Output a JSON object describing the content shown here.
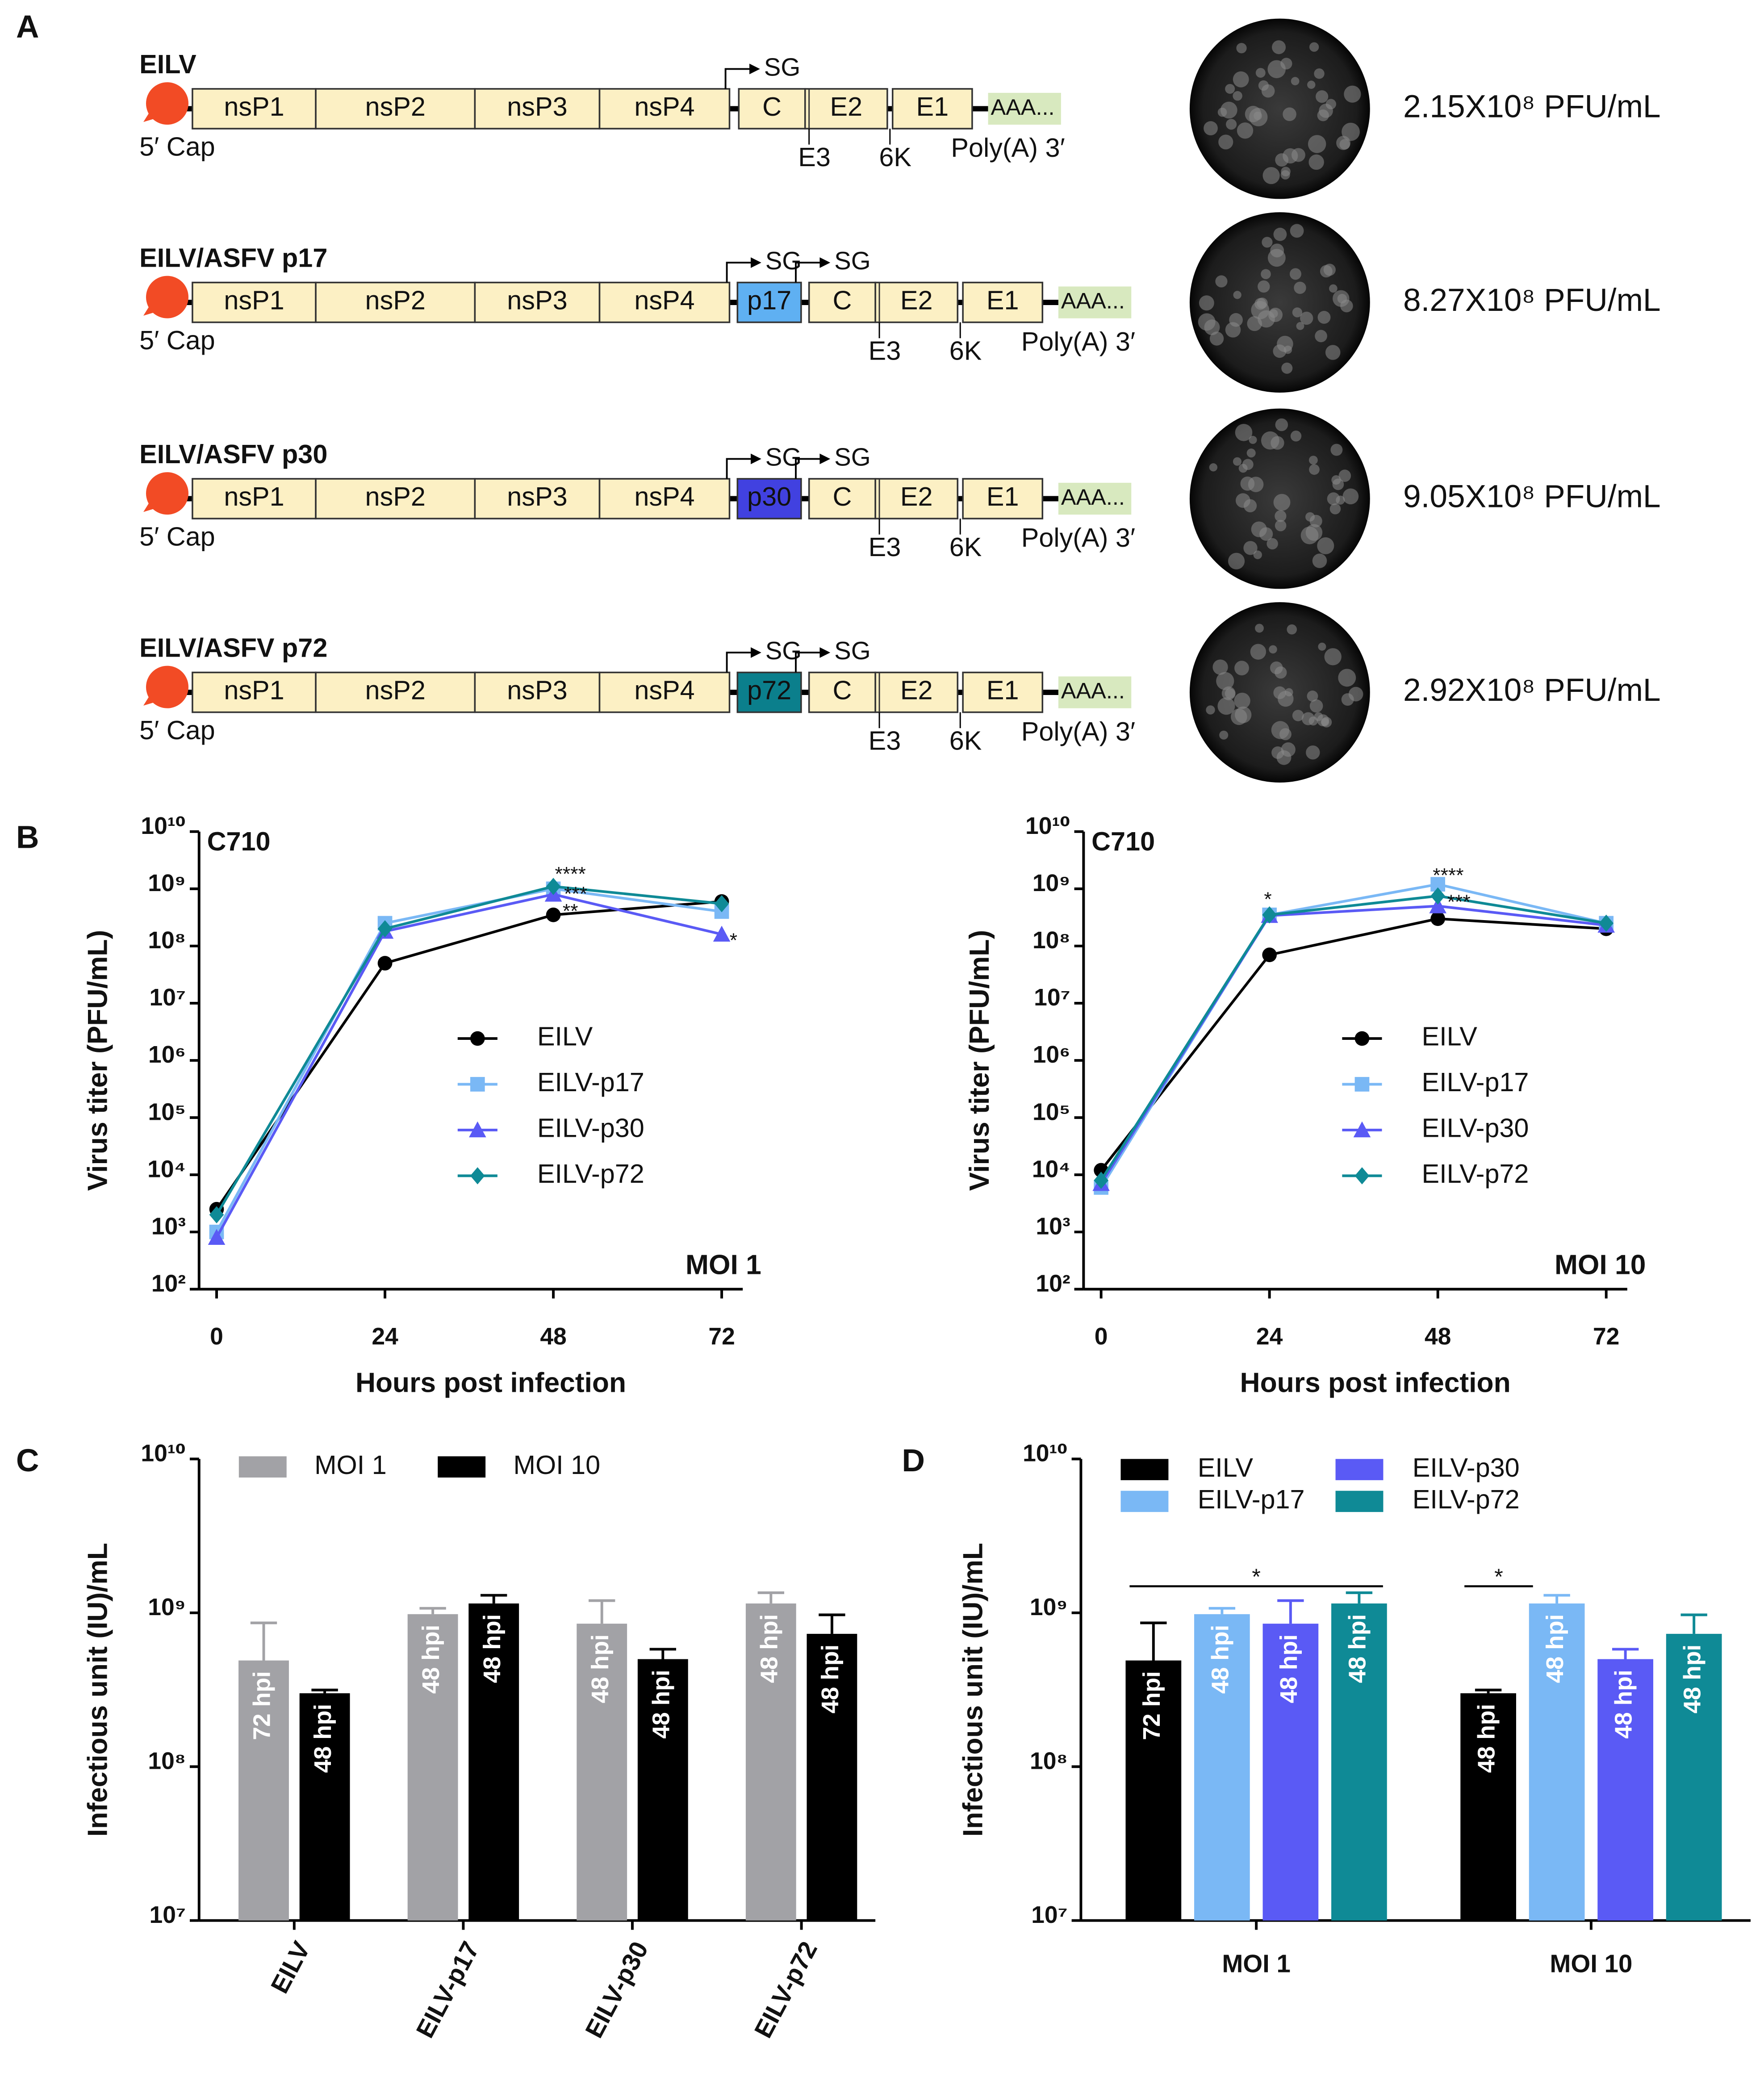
{
  "panel_labels": [
    "A",
    "B",
    "C",
    "D"
  ],
  "constructs": [
    {
      "name": "EILV",
      "cap": "5′ Cap",
      "genes": [
        "nsP1",
        "nsP2",
        "nsP3",
        "nsP4"
      ],
      "insert": null,
      "structural": [
        "C",
        "E2",
        "E1"
      ],
      "sg": [
        "SG"
      ],
      "junctions": [
        "E3",
        "6K"
      ],
      "tail": "AAA...",
      "polyA": "Poly(A) 3′",
      "titer": "2.15X10⁸ PFU/mL"
    },
    {
      "name": "EILV/ASFV p17",
      "cap": "5′ Cap",
      "genes": [
        "nsP1",
        "nsP2",
        "nsP3",
        "nsP4"
      ],
      "insert": {
        "label": "p17",
        "color": "#5fb0f2"
      },
      "structural": [
        "C",
        "E2",
        "E1"
      ],
      "sg": [
        "SG",
        "SG"
      ],
      "junctions": [
        "E3",
        "6K"
      ],
      "tail": "AAA...",
      "polyA": "Poly(A) 3′",
      "titer": "8.27X10⁸ PFU/mL"
    },
    {
      "name": "EILV/ASFV p30",
      "cap": "5′ Cap",
      "genes": [
        "nsP1",
        "nsP2",
        "nsP3",
        "nsP4"
      ],
      "insert": {
        "label": "p30",
        "color": "#4141e0"
      },
      "structural": [
        "C",
        "E2",
        "E1"
      ],
      "sg": [
        "SG",
        "SG"
      ],
      "junctions": [
        "E3",
        "6K"
      ],
      "tail": "AAA...",
      "polyA": "Poly(A) 3′",
      "titer": "9.05X10⁸ PFU/mL"
    },
    {
      "name": "EILV/ASFV p72",
      "cap": "5′ Cap",
      "genes": [
        "nsP1",
        "nsP2",
        "nsP3",
        "nsP4"
      ],
      "insert": {
        "label": "p72",
        "color": "#0b7f8c"
      },
      "structural": [
        "C",
        "E2",
        "E1"
      ],
      "sg": [
        "SG",
        "SG"
      ],
      "junctions": [
        "E3",
        "6K"
      ],
      "tail": "AAA...",
      "polyA": "Poly(A) 3′",
      "titer": "2.92X10⁸ PFU/mL"
    }
  ],
  "chart_data": [
    {
      "type": "line",
      "title": "C710",
      "corner_label": "MOI 1",
      "xlabel": "Hours post infection",
      "ylabel": "Virus titer (PFU/mL)",
      "x": [
        0,
        24,
        48,
        72
      ],
      "xlim": [
        -2.5,
        75
      ],
      "xticks": [
        0,
        24,
        48,
        72
      ],
      "ylim": [
        100,
        10000000000
      ],
      "yscale": "log",
      "yticks": [
        {
          "value": 100,
          "label": "10²"
        },
        {
          "value": 1000,
          "label": "10³"
        },
        {
          "value": 10000,
          "label": "10⁴"
        },
        {
          "value": 100000,
          "label": "10⁵"
        },
        {
          "value": 1000000,
          "label": "10⁶"
        },
        {
          "value": 10000000,
          "label": "10⁷"
        },
        {
          "value": 100000000,
          "label": "10⁸"
        },
        {
          "value": 1000000000,
          "label": "10⁹"
        },
        {
          "value": 10000000000,
          "label": "10¹⁰"
        }
      ],
      "series": [
        {
          "name": "EILV",
          "color": "#000000",
          "marker": "circle",
          "values": [
            2500,
            50000000,
            350000000,
            600000000
          ]
        },
        {
          "name": "EILV-p17",
          "color": "#7ab8f5",
          "marker": "square",
          "values": [
            1000,
            250000000,
            1000000000,
            400000000
          ]
        },
        {
          "name": "EILV-p30",
          "color": "#5a5af5",
          "marker": "triangle",
          "values": [
            800,
            180000000,
            800000000,
            160000000
          ]
        },
        {
          "name": "EILV-p72",
          "color": "#0f8a96",
          "marker": "diamond",
          "values": [
            2000,
            200000000,
            1100000000,
            550000000
          ]
        }
      ],
      "annotations": [
        "****",
        "***",
        "**",
        "*"
      ]
    },
    {
      "type": "line",
      "title": "C710",
      "corner_label": "MOI 10",
      "xlabel": "Hours post infection",
      "ylabel": "Virus titer (PFU/mL)",
      "x": [
        0,
        24,
        48,
        72
      ],
      "xlim": [
        -2.5,
        75
      ],
      "xticks": [
        0,
        24,
        48,
        72
      ],
      "ylim": [
        100,
        10000000000
      ],
      "yscale": "log",
      "yticks": [
        {
          "value": 100,
          "label": "10²"
        },
        {
          "value": 1000,
          "label": "10³"
        },
        {
          "value": 10000,
          "label": "10⁴"
        },
        {
          "value": 100000,
          "label": "10⁵"
        },
        {
          "value": 1000000,
          "label": "10⁶"
        },
        {
          "value": 10000000,
          "label": "10⁷"
        },
        {
          "value": 100000000,
          "label": "10⁸"
        },
        {
          "value": 1000000000,
          "label": "10⁹"
        },
        {
          "value": 10000000000,
          "label": "10¹⁰"
        }
      ],
      "series": [
        {
          "name": "EILV",
          "color": "#000000",
          "marker": "circle",
          "values": [
            12000,
            70000000,
            300000000,
            200000000
          ]
        },
        {
          "name": "EILV-p17",
          "color": "#7ab8f5",
          "marker": "square",
          "values": [
            6000,
            350000000,
            1200000000,
            250000000
          ]
        },
        {
          "name": "EILV-p30",
          "color": "#5a5af5",
          "marker": "triangle",
          "values": [
            7000,
            340000000,
            500000000,
            230000000
          ]
        },
        {
          "name": "EILV-p72",
          "color": "#0f8a96",
          "marker": "diamond",
          "values": [
            8000,
            350000000,
            750000000,
            250000000
          ]
        }
      ],
      "annotations": [
        "*",
        "****",
        "***"
      ]
    },
    {
      "type": "bar",
      "ylabel": "Infectious unit (IU)/mL",
      "categories": [
        "EILV",
        "EILV-p17",
        "EILV-p30",
        "EILV-p72"
      ],
      "ylim": [
        10000000,
        10000000000
      ],
      "yscale": "log",
      "yticks": [
        {
          "value": 10000000,
          "label": "10⁷"
        },
        {
          "value": 100000000,
          "label": "10⁸"
        },
        {
          "value": 1000000000,
          "label": "10⁹"
        },
        {
          "value": 10000000000,
          "label": "10¹⁰"
        }
      ],
      "series": [
        {
          "name": "MOI 1",
          "color": "#a2a2a6",
          "values": [
            490000000,
            980000000,
            850000000,
            1150000000
          ],
          "errors": [
            370000000,
            90000000,
            350000000,
            200000000
          ],
          "bar_labels": [
            "72 hpi",
            "48 hpi",
            "48 hpi",
            "48 hpi"
          ]
        },
        {
          "name": "MOI 10",
          "color": "#000000",
          "values": [
            300000000,
            1150000000,
            500000000,
            730000000
          ],
          "errors": [
            15000000,
            150000000,
            80000000,
            240000000
          ],
          "bar_labels": [
            "48 hpi",
            "48 hpi",
            "48 hpi",
            "48 hpi"
          ]
        }
      ]
    },
    {
      "type": "bar",
      "ylabel": "Infectious unit (IU)/mL",
      "categories": [
        "MOI 1",
        "MOI 10"
      ],
      "ylim": [
        10000000,
        10000000000
      ],
      "yscale": "log",
      "yticks": [
        {
          "value": 10000000,
          "label": "10⁷"
        },
        {
          "value": 100000000,
          "label": "10⁸"
        },
        {
          "value": 1000000000,
          "label": "10⁹"
        },
        {
          "value": 10000000000,
          "label": "10¹⁰"
        }
      ],
      "series": [
        {
          "name": "EILV",
          "color": "#000000",
          "values": [
            490000000,
            300000000
          ],
          "errors": [
            370000000,
            15000000
          ],
          "bar_labels": [
            "72 hpi",
            "48 hpi"
          ]
        },
        {
          "name": "EILV-p17",
          "color": "#7ab8f5",
          "values": [
            980000000,
            1150000000
          ],
          "errors": [
            90000000,
            150000000
          ],
          "bar_labels": [
            "48 hpi",
            "48 hpi"
          ]
        },
        {
          "name": "EILV-p30",
          "color": "#5a5af5",
          "values": [
            850000000,
            500000000
          ],
          "errors": [
            350000000,
            80000000
          ],
          "bar_labels": [
            "48 hpi",
            "48 hpi"
          ]
        },
        {
          "name": "EILV-p72",
          "color": "#0f8a96",
          "values": [
            1150000000,
            730000000
          ],
          "errors": [
            200000000,
            240000000
          ],
          "bar_labels": [
            "48 hpi",
            "48 hpi"
          ]
        }
      ],
      "annotations": [
        "*",
        "*"
      ]
    }
  ]
}
